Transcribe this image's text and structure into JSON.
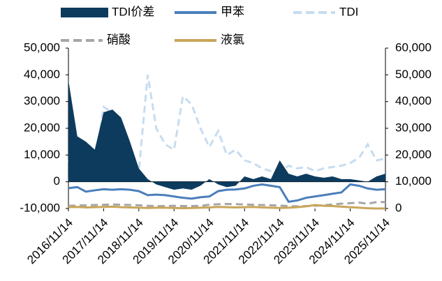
{
  "chart_data": {
    "type": "line",
    "x": [
      "2016/11/14",
      "2017/02/14",
      "2017/05/14",
      "2017/08/14",
      "2017/11/14",
      "2018/02/14",
      "2018/05/14",
      "2018/08/14",
      "2018/11/14",
      "2019/02/14",
      "2019/05/14",
      "2019/08/14",
      "2019/11/14",
      "2020/02/14",
      "2020/05/14",
      "2020/08/14",
      "2020/11/14",
      "2021/02/14",
      "2021/05/14",
      "2021/08/14",
      "2021/11/14",
      "2022/02/14",
      "2022/05/14",
      "2022/08/14",
      "2022/11/14",
      "2023/02/14",
      "2023/05/14",
      "2023/08/14",
      "2023/11/14",
      "2024/02/14",
      "2024/05/14",
      "2024/08/14",
      "2024/11/14",
      "2025/02/14",
      "2025/05/14",
      "2025/08/14",
      "2025/11/14"
    ],
    "series": [
      {
        "name": "TDI价差",
        "color": "#0d3b5e",
        "kind": "area",
        "axis": "y",
        "values": [
          38000,
          17000,
          15000,
          12000,
          26000,
          27000,
          24000,
          15000,
          5000,
          1000,
          -1000,
          -2000,
          -3000,
          -2500,
          -3000,
          -1500,
          1000,
          -1000,
          -2000,
          -1500,
          2000,
          1000,
          2000,
          1000,
          8000,
          3000,
          2000,
          3000,
          2000,
          1500,
          2000,
          1000,
          1000,
          500,
          0,
          2000,
          3000
        ]
      },
      {
        "name": "甲苯",
        "color": "#4a7ebb",
        "kind": "line",
        "axis": "y2",
        "values": [
          7600,
          8000,
          6300,
          6800,
          7200,
          7000,
          7200,
          7000,
          6500,
          5000,
          5200,
          5000,
          4500,
          4000,
          3700,
          4200,
          4500,
          6500,
          7000,
          7100,
          7500,
          8500,
          9000,
          8500,
          8000,
          2500,
          3000,
          4000,
          4500,
          5000,
          5500,
          6000,
          9000,
          8500,
          7500,
          7000,
          7200
        ]
      },
      {
        "name": "TDI",
        "color": "#c6dcf0",
        "kind": "dashed",
        "axis": "y2",
        "values": [
          18000,
          17000,
          16000,
          15000,
          38000,
          36000,
          30000,
          20000,
          14000,
          50000,
          30000,
          24000,
          22000,
          42000,
          39000,
          30000,
          23000,
          29000,
          20000,
          22000,
          18000,
          17000,
          15000,
          14000,
          14000,
          16000,
          15000,
          15500,
          14000,
          15000,
          15500,
          16000,
          17000,
          19000,
          24000,
          18000,
          18700
        ]
      },
      {
        "name": "硝酸",
        "color": "#a6a6a6",
        "kind": "dashed",
        "axis": "y2",
        "values": [
          1000,
          1100,
          1200,
          1300,
          1400,
          1500,
          1400,
          1300,
          1200,
          1000,
          900,
          900,
          1000,
          900,
          900,
          1000,
          1400,
          1600,
          1700,
          1600,
          1500,
          1400,
          1300,
          1200,
          1100,
          900,
          800,
          900,
          1000,
          1200,
          1500,
          1800,
          2000,
          2200,
          1800,
          2400,
          2400
        ]
      },
      {
        "name": "液氯",
        "color": "#c9a55a",
        "kind": "line",
        "axis": "y2",
        "values": [
          500,
          600,
          400,
          500,
          600,
          700,
          500,
          400,
          300,
          200,
          300,
          300,
          200,
          100,
          200,
          300,
          400,
          600,
          500,
          400,
          500,
          600,
          400,
          300,
          200,
          300,
          500,
          800,
          1300,
          1000,
          900,
          700,
          500,
          300,
          100,
          0,
          0
        ]
      }
    ],
    "xticks": [
      "2016/11/14",
      "2017/11/14",
      "2018/11/14",
      "2019/11/14",
      "2020/11/14",
      "2021/11/14",
      "2022/11/14",
      "2023/11/14",
      "2024/11/14",
      "2025/11/14"
    ],
    "ylim": [
      -10000,
      50000
    ],
    "yticks": [
      {
        "value": -10000,
        "label": "-10,000"
      },
      0,
      {
        "value": 10000,
        "label": "10,000"
      },
      {
        "value": 20000,
        "label": "20,000"
      },
      {
        "value": 30000,
        "label": "30,000"
      },
      {
        "value": 40000,
        "label": "40,000"
      },
      {
        "value": 50000,
        "label": "50,000"
      }
    ],
    "y2lim": [
      0,
      60000
    ],
    "y2ticks": [
      0,
      {
        "value": 10000,
        "label": "10,000"
      },
      {
        "value": 20000,
        "label": "20,000"
      },
      {
        "value": 30000,
        "label": "30,000"
      },
      {
        "value": 40000,
        "label": "40,000"
      },
      {
        "value": 50000,
        "label": "50,000"
      },
      {
        "value": 60000,
        "label": "60,000"
      }
    ]
  }
}
